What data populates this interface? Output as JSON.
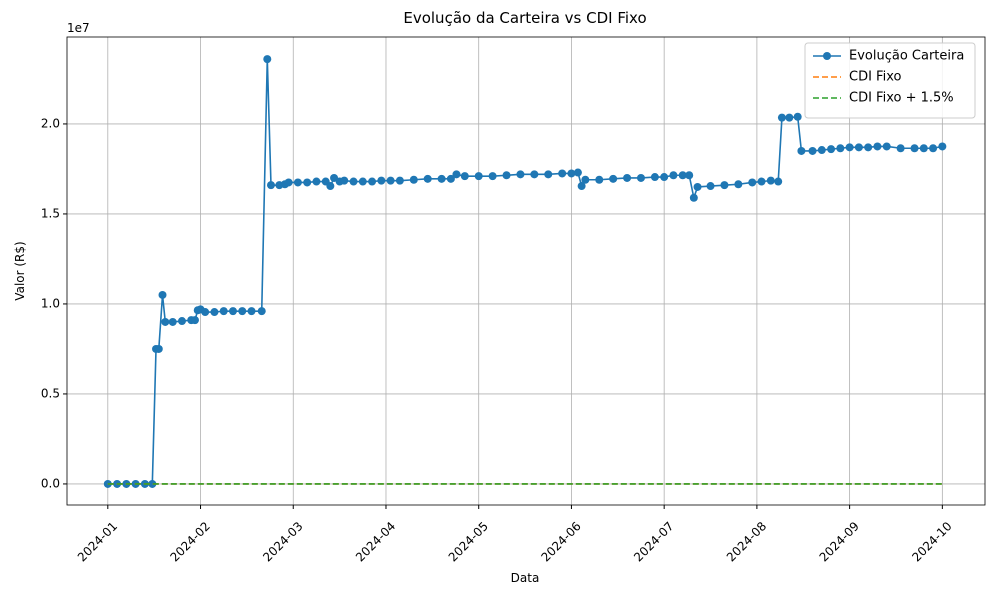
{
  "chart_data": {
    "type": "line",
    "title": "Evolução da Carteira vs CDI Fixo",
    "x_label": "Data",
    "y_label": "Valor (R$)",
    "y_offset_label": "1e7",
    "xlim": [
      -0.44,
      9.46
    ],
    "ylim": [
      -0.117,
      2.483
    ],
    "xticks": [
      {
        "value": 0,
        "label": "2024-01"
      },
      {
        "value": 1,
        "label": "2024-02"
      },
      {
        "value": 2,
        "label": "2024-03"
      },
      {
        "value": 3,
        "label": "2024-04"
      },
      {
        "value": 4,
        "label": "2024-05"
      },
      {
        "value": 5,
        "label": "2024-06"
      },
      {
        "value": 6,
        "label": "2024-07"
      },
      {
        "value": 7,
        "label": "2024-08"
      },
      {
        "value": 8,
        "label": "2024-09"
      },
      {
        "value": 9,
        "label": "2024-10"
      }
    ],
    "yticks": [
      {
        "value": 0,
        "label": "0.0"
      },
      0.5,
      {
        "value": 1,
        "label": "1.0"
      },
      1.5,
      {
        "value": 2,
        "label": "2.0"
      }
    ],
    "grid": true,
    "legend": "upper right",
    "series": [
      {
        "name": "Evolução Carteira",
        "color": "#1f77b4",
        "style": "solid",
        "markers": true,
        "x": [
          0,
          0.1,
          0.2,
          0.3,
          0.4,
          0.48,
          0.52,
          0.55,
          0.59,
          0.62,
          0.7,
          0.8,
          0.9,
          0.94,
          0.97,
          1.0,
          1.05,
          1.15,
          1.25,
          1.35,
          1.45,
          1.55,
          1.66,
          1.72,
          1.76,
          1.85,
          1.91,
          1.95,
          2.05,
          2.15,
          2.25,
          2.35,
          2.4,
          2.44,
          2.5,
          2.55,
          2.65,
          2.75,
          2.85,
          2.95,
          3.05,
          3.15,
          3.3,
          3.45,
          3.6,
          3.7,
          3.76,
          3.85,
          4.0,
          4.15,
          4.3,
          4.45,
          4.6,
          4.75,
          4.9,
          5.0,
          5.07,
          5.11,
          5.15,
          5.3,
          5.45,
          5.6,
          5.75,
          5.9,
          6.0,
          6.1,
          6.2,
          6.27,
          6.32,
          6.36,
          6.5,
          6.65,
          6.8,
          6.95,
          7.05,
          7.15,
          7.23,
          7.27,
          7.35,
          7.44,
          7.48,
          7.6,
          7.7,
          7.8,
          7.9,
          8.0,
          8.1,
          8.2,
          8.3,
          8.4,
          8.55,
          8.7,
          8.8,
          8.9,
          9.0
        ],
        "values": [
          0,
          0,
          0,
          0,
          0,
          0,
          0.75,
          0.75,
          1.05,
          0.9,
          0.9,
          0.905,
          0.91,
          0.91,
          0.965,
          0.97,
          0.955,
          0.955,
          0.96,
          0.96,
          0.96,
          0.96,
          0.96,
          2.36,
          1.66,
          1.66,
          1.665,
          1.675,
          1.675,
          1.675,
          1.68,
          1.68,
          1.655,
          1.7,
          1.68,
          1.685,
          1.68,
          1.68,
          1.68,
          1.685,
          1.685,
          1.685,
          1.69,
          1.695,
          1.695,
          1.695,
          1.72,
          1.71,
          1.71,
          1.71,
          1.715,
          1.72,
          1.72,
          1.72,
          1.725,
          1.725,
          1.73,
          1.655,
          1.69,
          1.69,
          1.695,
          1.7,
          1.7,
          1.705,
          1.705,
          1.715,
          1.715,
          1.715,
          1.59,
          1.65,
          1.655,
          1.66,
          1.665,
          1.675,
          1.68,
          1.685,
          1.68,
          2.035,
          2.035,
          2.04,
          1.85,
          1.85,
          1.855,
          1.86,
          1.865,
          1.87,
          1.87,
          1.87,
          1.875,
          1.875,
          1.865,
          1.865,
          1.865,
          1.865,
          1.875
        ]
      },
      {
        "name": "CDI Fixo",
        "color": "#ff7f0e",
        "style": "dashed",
        "markers": false,
        "x": [
          0,
          9
        ],
        "values": [
          0,
          0
        ]
      },
      {
        "name": "CDI Fixo + 1.5%",
        "color": "#2ca02c",
        "style": "dashed",
        "markers": false,
        "x": [
          0,
          9
        ],
        "values": [
          0,
          0
        ]
      }
    ]
  }
}
